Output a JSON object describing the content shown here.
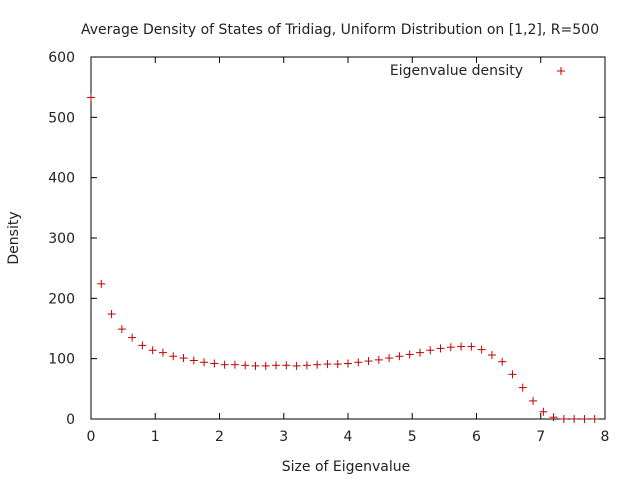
{
  "chart_data": {
    "type": "scatter",
    "title": "Average Density of States of Tridiag, Uniform Distribution on [1,2], R=500",
    "xlabel": "Size of Eigenvalue",
    "ylabel": "Density",
    "xlim": [
      0,
      8
    ],
    "ylim": [
      0,
      600
    ],
    "x_ticks": [
      0,
      1,
      2,
      3,
      4,
      5,
      6,
      7,
      8
    ],
    "y_ticks": [
      0,
      100,
      200,
      300,
      400,
      500,
      600
    ],
    "grid": false,
    "legend_position": "top-right",
    "series": [
      {
        "name": "Eigenvalue density",
        "marker": "+",
        "color": "#c00000",
        "x": [
          0.0,
          0.16,
          0.32,
          0.48,
          0.64,
          0.8,
          0.96,
          1.12,
          1.28,
          1.44,
          1.6,
          1.76,
          1.92,
          2.08,
          2.24,
          2.4,
          2.56,
          2.72,
          2.88,
          3.04,
          3.2,
          3.36,
          3.52,
          3.68,
          3.84,
          4.0,
          4.16,
          4.32,
          4.48,
          4.64,
          4.8,
          4.96,
          5.12,
          5.28,
          5.44,
          5.6,
          5.76,
          5.92,
          6.08,
          6.24,
          6.4,
          6.56,
          6.72,
          6.88,
          7.04,
          7.2,
          7.36,
          7.52,
          7.68,
          7.84
        ],
        "y": [
          533,
          224,
          174,
          149,
          135,
          122,
          114,
          110,
          104,
          101,
          97,
          94,
          92,
          90,
          90,
          89,
          88,
          88,
          89,
          89,
          88,
          89,
          90,
          91,
          91,
          92,
          94,
          96,
          98,
          101,
          104,
          107,
          110,
          114,
          117,
          119,
          120,
          120,
          115,
          106,
          95,
          74,
          52,
          30,
          12,
          3,
          0,
          0,
          0,
          0
        ]
      }
    ]
  }
}
